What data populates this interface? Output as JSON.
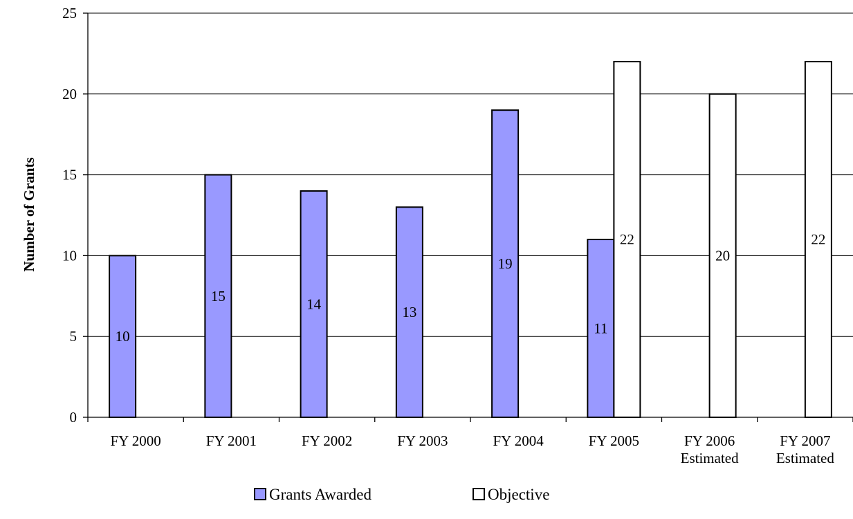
{
  "chart_data": {
    "type": "bar",
    "categories": [
      [
        "FY 2000"
      ],
      [
        "FY 2001"
      ],
      [
        "FY 2002"
      ],
      [
        "FY 2003"
      ],
      [
        "FY 2004"
      ],
      [
        "FY 2005"
      ],
      [
        "FY 2006",
        "Estimated"
      ],
      [
        "FY 2007",
        "Estimated"
      ]
    ],
    "series": [
      {
        "name": "Grants Awarded",
        "color": "#9999ff",
        "values": [
          10,
          15,
          14,
          13,
          19,
          11,
          null,
          null
        ]
      },
      {
        "name": "Objective",
        "color": "#ffffff",
        "values": [
          null,
          null,
          null,
          null,
          null,
          22,
          20,
          22
        ]
      }
    ],
    "ylabel": "Number of Grants",
    "ylim": [
      0,
      25
    ],
    "yticks": [
      0,
      5,
      10,
      15,
      20,
      25
    ],
    "grid": true,
    "legend_position": "bottom"
  }
}
